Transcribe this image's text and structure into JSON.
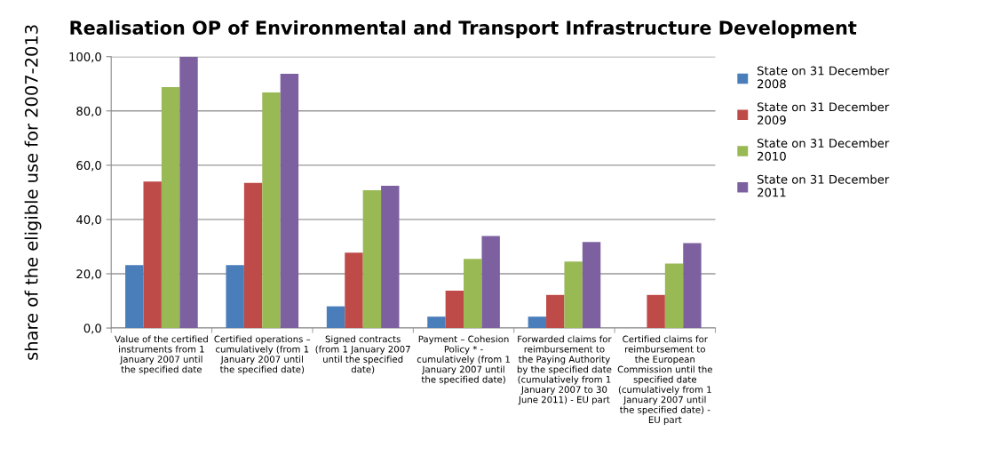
{
  "chart_data": {
    "type": "bar",
    "title": "Realisation OP of Environmental and Transport Infrastructure Development",
    "ylabel": "share of the eligible use for 2007-2013",
    "categories": [
      "Value of the certified\ninstruments from 1\nJanuary 2007 until\nthe specified date",
      "Certified operations –\ncumulatively (from 1\nJanuary 2007 until\nthe specified date)",
      "Signed contracts\n(from 1 January 2007\nuntil the specified\ndate)",
      "Payment – Cohesion\nPolicy * -\ncumulatively (from 1\nJanuary 2007 until\nthe specified date)",
      "Forwarded claims for\nreimbursement to\nthe Paying Authority\nby the specified date\n(cumulatively from 1\nJanuary 2007 to 30\nJune 2011) - EU part",
      "Certified claims for\nreimbursement to\nthe European\nCommission until the\nspecified date\n(cumulatively from 1\nJanuary 2007 until\nthe specified date) -\nEU part"
    ],
    "series": [
      {
        "name": "State on 31 December\n2008",
        "color": "#4a7ebb",
        "values": [
          23.2,
          23.2,
          8.0,
          4.2,
          4.2,
          null
        ]
      },
      {
        "name": "State on 31 December\n2009",
        "color": "#be4b48",
        "values": [
          54.0,
          53.5,
          27.8,
          13.8,
          12.2,
          12.2
        ]
      },
      {
        "name": "State on 31 December\n2010",
        "color": "#98b954",
        "values": [
          88.8,
          86.8,
          50.8,
          25.5,
          24.5,
          23.8
        ]
      },
      {
        "name": "State on 31 December\n2011",
        "color": "#7d60a0",
        "values": [
          100.0,
          93.7,
          52.4,
          33.9,
          31.7,
          31.3
        ]
      }
    ],
    "ylim": [
      0,
      100
    ],
    "yticks": [
      {
        "value": 0,
        "label": "0,0"
      },
      {
        "value": 20,
        "label": "20,0"
      },
      {
        "value": 40,
        "label": "40,0"
      },
      {
        "value": 60,
        "label": "60,0"
      },
      {
        "value": 80,
        "label": "80,0"
      },
      {
        "value": 100,
        "label": "100,0"
      }
    ],
    "grid": "y",
    "legend": "right"
  }
}
